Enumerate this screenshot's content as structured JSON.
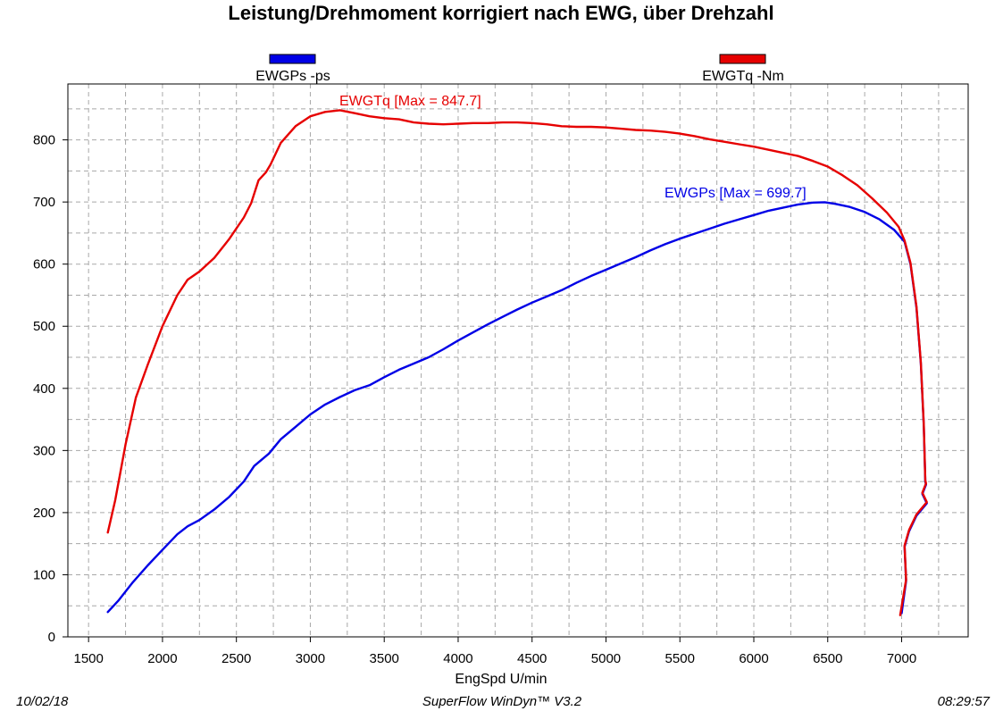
{
  "chart_data": {
    "type": "line",
    "title": "Leistung/Drehmoment korrigiert nach EWG, über Drehzahl",
    "xlabel": "EngSpd U/min",
    "ylabel": "",
    "xlim": [
      1360,
      7450
    ],
    "ylim": [
      0,
      890
    ],
    "xticks": [
      1500,
      2000,
      2500,
      3000,
      3500,
      4000,
      4500,
      5000,
      5500,
      6000,
      6500,
      7000
    ],
    "yticks": [
      0,
      100,
      200,
      300,
      400,
      500,
      600,
      700,
      800
    ],
    "grid": true,
    "legend_position": "top",
    "series": [
      {
        "name": "EWGPs -ps",
        "color": "#0000e6",
        "annotation": "EWGPs  [Max = 699.7]",
        "points": [
          [
            1630,
            40
          ],
          [
            1700,
            58
          ],
          [
            1800,
            88
          ],
          [
            1900,
            115
          ],
          [
            2000,
            140
          ],
          [
            2100,
            165
          ],
          [
            2170,
            178
          ],
          [
            2250,
            188
          ],
          [
            2350,
            205
          ],
          [
            2450,
            225
          ],
          [
            2550,
            250
          ],
          [
            2620,
            275
          ],
          [
            2720,
            295
          ],
          [
            2800,
            318
          ],
          [
            2900,
            338
          ],
          [
            3000,
            358
          ],
          [
            3100,
            374
          ],
          [
            3200,
            386
          ],
          [
            3300,
            397
          ],
          [
            3400,
            405
          ],
          [
            3500,
            418
          ],
          [
            3600,
            430
          ],
          [
            3700,
            440
          ],
          [
            3800,
            450
          ],
          [
            3900,
            463
          ],
          [
            4000,
            477
          ],
          [
            4100,
            490
          ],
          [
            4200,
            503
          ],
          [
            4300,
            515
          ],
          [
            4400,
            527
          ],
          [
            4500,
            538
          ],
          [
            4600,
            548
          ],
          [
            4700,
            558
          ],
          [
            4800,
            570
          ],
          [
            4900,
            581
          ],
          [
            5000,
            591
          ],
          [
            5100,
            601
          ],
          [
            5200,
            611
          ],
          [
            5300,
            622
          ],
          [
            5400,
            632
          ],
          [
            5500,
            641
          ],
          [
            5600,
            649
          ],
          [
            5700,
            657
          ],
          [
            5800,
            665
          ],
          [
            5900,
            672
          ],
          [
            6000,
            679
          ],
          [
            6100,
            686
          ],
          [
            6200,
            691
          ],
          [
            6300,
            696
          ],
          [
            6400,
            699
          ],
          [
            6480,
            699.7
          ],
          [
            6550,
            697
          ],
          [
            6650,
            692
          ],
          [
            6750,
            684
          ],
          [
            6850,
            672
          ],
          [
            6950,
            655
          ],
          [
            7020,
            636
          ],
          [
            7060,
            600
          ],
          [
            7100,
            530
          ],
          [
            7130,
            440
          ],
          [
            7150,
            340
          ],
          [
            7160,
            250
          ],
          [
            7165,
            245
          ],
          [
            7140,
            230
          ],
          [
            7170,
            215
          ],
          [
            7100,
            195
          ],
          [
            7050,
            170
          ],
          [
            7020,
            145
          ],
          [
            7030,
            90
          ],
          [
            7000,
            38
          ]
        ]
      },
      {
        "name": "EWGTq -Nm",
        "color": "#e60000",
        "annotation": "EWGTq  [Max = 847.7]",
        "points": [
          [
            1630,
            168
          ],
          [
            1680,
            220
          ],
          [
            1750,
            310
          ],
          [
            1820,
            385
          ],
          [
            1900,
            438
          ],
          [
            2000,
            500
          ],
          [
            2100,
            550
          ],
          [
            2170,
            575
          ],
          [
            2250,
            588
          ],
          [
            2350,
            610
          ],
          [
            2450,
            640
          ],
          [
            2550,
            675
          ],
          [
            2600,
            698
          ],
          [
            2650,
            735
          ],
          [
            2700,
            748
          ],
          [
            2730,
            760
          ],
          [
            2800,
            795
          ],
          [
            2900,
            822
          ],
          [
            3000,
            838
          ],
          [
            3100,
            845
          ],
          [
            3200,
            847.7
          ],
          [
            3300,
            843
          ],
          [
            3400,
            838
          ],
          [
            3500,
            835
          ],
          [
            3600,
            833
          ],
          [
            3700,
            828
          ],
          [
            3800,
            826
          ],
          [
            3900,
            825
          ],
          [
            4000,
            826
          ],
          [
            4100,
            827
          ],
          [
            4200,
            827
          ],
          [
            4300,
            828
          ],
          [
            4400,
            828
          ],
          [
            4500,
            827
          ],
          [
            4600,
            825
          ],
          [
            4700,
            822
          ],
          [
            4800,
            821
          ],
          [
            4900,
            821
          ],
          [
            5000,
            820
          ],
          [
            5100,
            818
          ],
          [
            5200,
            816
          ],
          [
            5300,
            815
          ],
          [
            5400,
            813
          ],
          [
            5500,
            810
          ],
          [
            5600,
            806
          ],
          [
            5700,
            801
          ],
          [
            5800,
            797
          ],
          [
            5900,
            793
          ],
          [
            6000,
            789
          ],
          [
            6100,
            784
          ],
          [
            6200,
            779
          ],
          [
            6300,
            774
          ],
          [
            6400,
            766
          ],
          [
            6500,
            757
          ],
          [
            6600,
            743
          ],
          [
            6700,
            727
          ],
          [
            6800,
            706
          ],
          [
            6900,
            683
          ],
          [
            6980,
            660
          ],
          [
            7020,
            638
          ],
          [
            7060,
            602
          ],
          [
            7100,
            532
          ],
          [
            7130,
            442
          ],
          [
            7150,
            342
          ],
          [
            7160,
            252
          ],
          [
            7165,
            247
          ],
          [
            7140,
            232
          ],
          [
            7170,
            217
          ],
          [
            7100,
            197
          ],
          [
            7050,
            172
          ],
          [
            7020,
            147
          ],
          [
            7030,
            92
          ],
          [
            6990,
            35
          ]
        ]
      }
    ]
  },
  "footer": {
    "date": "10/02/18",
    "software": "SuperFlow WinDyn™ V3.2",
    "time": "08:29:57"
  }
}
